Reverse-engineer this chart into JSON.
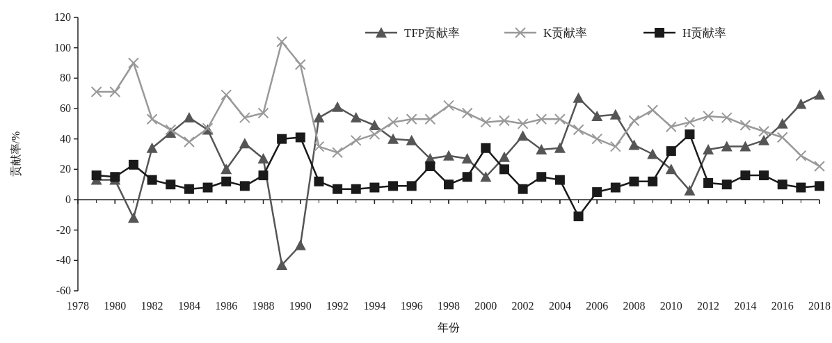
{
  "chart_data": {
    "type": "line",
    "xlabel": "年份",
    "ylabel": "贡献率/%",
    "x": [
      1979,
      1980,
      1981,
      1982,
      1983,
      1984,
      1985,
      1986,
      1987,
      1988,
      1989,
      1990,
      1991,
      1992,
      1993,
      1994,
      1995,
      1996,
      1997,
      1998,
      1999,
      2000,
      2001,
      2002,
      2003,
      2004,
      2005,
      2006,
      2007,
      2008,
      2009,
      2010,
      2011,
      2012,
      2013,
      2014,
      2015,
      2016,
      2017,
      2018
    ],
    "series": [
      {
        "name": "TFP贡献率",
        "color": "#555555",
        "marker": "triangle",
        "values": [
          13,
          13,
          -12,
          34,
          44,
          54,
          46,
          20,
          37,
          27,
          -43,
          -30,
          54,
          61,
          54,
          49,
          40,
          39,
          27,
          29,
          27,
          15,
          28,
          42,
          33,
          34,
          67,
          55,
          56,
          36,
          30,
          20,
          6,
          33,
          35,
          35,
          39,
          50,
          63,
          69
        ]
      },
      {
        "name": "K贡献率",
        "color": "#999999",
        "marker": "cross",
        "values": [
          71,
          71,
          90,
          53,
          46,
          38,
          47,
          69,
          54,
          57,
          104,
          89,
          35,
          31,
          39,
          43,
          51,
          53,
          53,
          62,
          57,
          51,
          52,
          50,
          53,
          53,
          46,
          40,
          35,
          52,
          59,
          48,
          51,
          55,
          54,
          49,
          45,
          41,
          29,
          22
        ]
      },
      {
        "name": "H贡献率",
        "color": "#1a1a1a",
        "marker": "square",
        "values": [
          16,
          15,
          23,
          13,
          10,
          7,
          8,
          12,
          9,
          16,
          40,
          41,
          12,
          7,
          7,
          8,
          9,
          9,
          22,
          10,
          15,
          34,
          20,
          7,
          15,
          13,
          -11,
          5,
          8,
          12,
          12,
          32,
          43,
          11,
          10,
          16,
          16,
          10,
          8,
          9
        ]
      }
    ],
    "xlim": [
      1978,
      2018
    ],
    "xticks": [
      1978,
      1980,
      1982,
      1984,
      1986,
      1988,
      1990,
      1992,
      1994,
      1996,
      1998,
      2000,
      2002,
      2004,
      2006,
      2008,
      2010,
      2012,
      2014,
      2016,
      2018
    ],
    "ylim": [
      -60,
      120
    ],
    "yticks": [
      -60,
      -40,
      -20,
      0,
      20,
      40,
      60,
      80,
      100,
      120
    ],
    "legend": "top",
    "line_style": "solid"
  }
}
